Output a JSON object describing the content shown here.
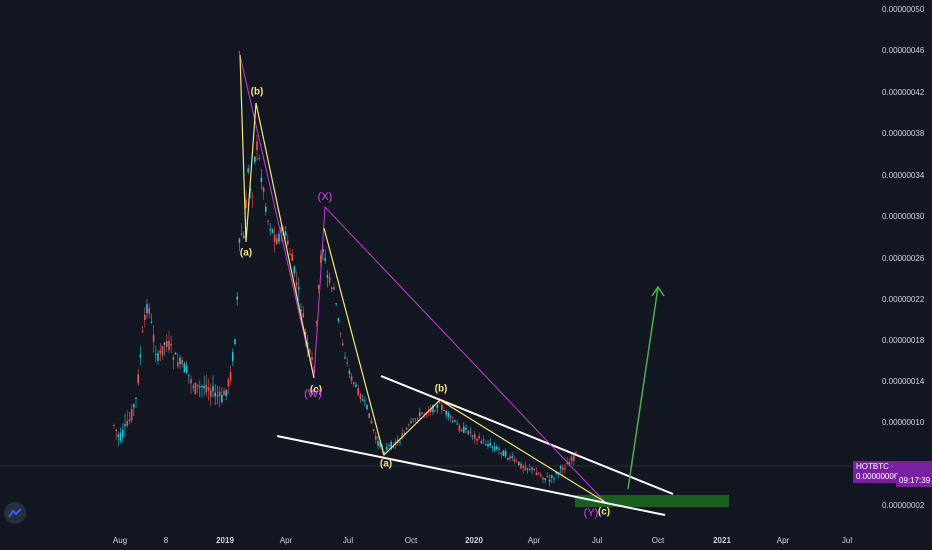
{
  "chart_data": {
    "type": "candlestick",
    "pair": "HOTBTC",
    "y_ticks": [
      "0.00000050",
      "0.00000046",
      "0.00000042",
      "0.00000038",
      "0.00000034",
      "0.00000030",
      "0.00000026",
      "0.00000022",
      "0.00000018",
      "0.00000014",
      "0.00000010",
      "0.00000002"
    ],
    "ylim": [
      2e-08,
      5e-07
    ],
    "x_ticks": [
      {
        "label": "Aug",
        "year": false
      },
      {
        "label": "8",
        "year": false
      },
      {
        "label": "2019",
        "year": true
      },
      {
        "label": "Apr",
        "year": false
      },
      {
        "label": "Jul",
        "year": false
      },
      {
        "label": "Oct",
        "year": false
      },
      {
        "label": "2020",
        "year": true
      },
      {
        "label": "Apr",
        "year": false
      },
      {
        "label": "Jul",
        "year": false
      },
      {
        "label": "Oct",
        "year": false
      },
      {
        "label": "2021",
        "year": true
      },
      {
        "label": "Apr",
        "year": false
      },
      {
        "label": "Jul",
        "year": false
      }
    ],
    "last_price": "0.00000006",
    "countdown": "09:17:39",
    "colors": {
      "up": "#26c6da",
      "down": "#ef5350",
      "yellow_wave": "#f5e67a",
      "magenta_wave": "#c040d0",
      "target": "#4caf50",
      "trendline": "#ffffff"
    },
    "wave_labels": [
      {
        "text": "(b)",
        "color": "yellow"
      },
      {
        "text": "(a)",
        "color": "yellow"
      },
      {
        "text": "(X)",
        "color": "magenta"
      },
      {
        "text": "(c)",
        "color": "yellow"
      },
      {
        "text": "(W)",
        "color": "magenta"
      },
      {
        "text": "(b)",
        "color": "yellow"
      },
      {
        "text": "(a)",
        "color": "yellow"
      },
      {
        "text": "(c)",
        "color": "yellow"
      },
      {
        "text": "(Y)",
        "color": "magenta"
      }
    ],
    "grid": false,
    "legend": "none"
  }
}
